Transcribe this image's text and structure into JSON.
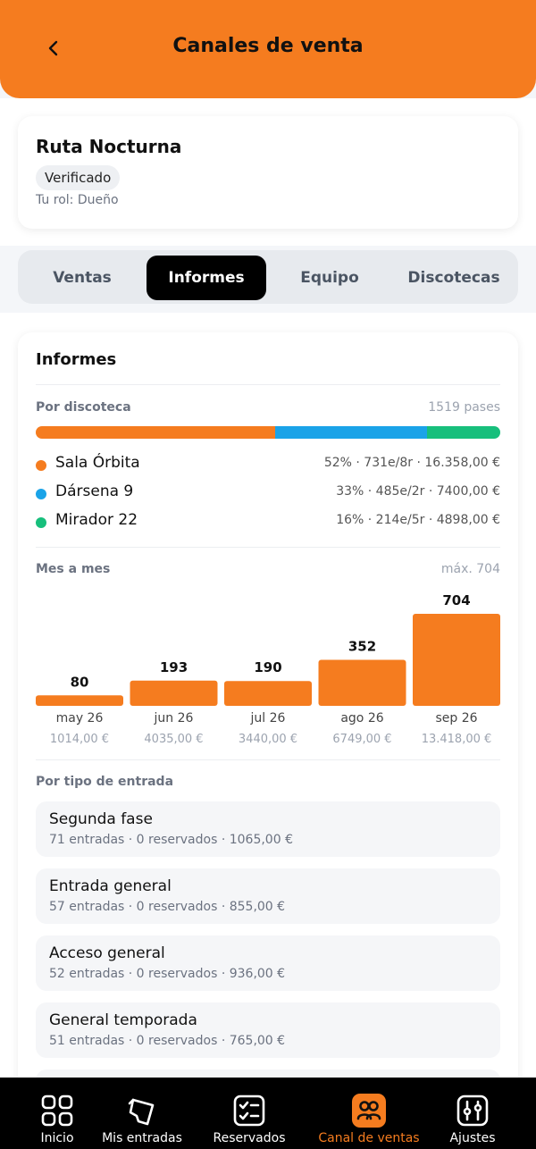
{
  "header": {
    "title": "Canales de venta",
    "back_icon": "chevron-left-icon"
  },
  "profile": {
    "name": "Ruta Nocturna",
    "badge": "Verificado",
    "role": "Tu rol: Dueño"
  },
  "tabs": [
    {
      "label": "Ventas",
      "active": false
    },
    {
      "label": "Informes",
      "active": true
    },
    {
      "label": "Equipo",
      "active": false
    },
    {
      "label": "Discotecas",
      "active": false
    }
  ],
  "report": {
    "title": "Informes",
    "by_club": {
      "title": "Por discoteca",
      "total": "1519 pases",
      "items": [
        {
          "name": "Sala Órbita",
          "stats": "52% · 731e/8r · 16.358,00 €",
          "share": 52,
          "color": "#f57c1f"
        },
        {
          "name": "Dársena 9",
          "stats": "33% · 485e/2r · 7400,00 €",
          "share": 33,
          "color": "#1aa3e8"
        },
        {
          "name": "Mirador 22",
          "stats": "16% · 214e/5r · 4898,00 €",
          "share": 16,
          "color": "#17bf7c"
        }
      ]
    },
    "monthly": {
      "title": "Mes a mes",
      "max_label": "máx. 704"
    },
    "by_ticket": {
      "title": "Por tipo de entrada",
      "items": [
        {
          "name": "Segunda fase",
          "meta": "71 entradas · 0 reservados · 1065,00 €"
        },
        {
          "name": "Entrada general",
          "meta": "57 entradas · 0 reservados · 855,00 €"
        },
        {
          "name": "Acceso general",
          "meta": "52 entradas · 0 reservados · 936,00 €"
        },
        {
          "name": "General temporada",
          "meta": "51 entradas · 0 reservados · 765,00 €"
        }
      ]
    }
  },
  "chart_data": {
    "type": "bar",
    "categories": [
      "may 26",
      "jun 26",
      "jul 26",
      "ago 26",
      "sep 26"
    ],
    "values": [
      80,
      193,
      190,
      352,
      704
    ],
    "amounts": [
      "1014,00 €",
      "4035,00 €",
      "3440,00 €",
      "6749,00 €",
      "13.418,00 €"
    ],
    "ylim": [
      0,
      704
    ],
    "color": "#f57c1f"
  },
  "nav": [
    {
      "label": "Inicio",
      "icon": "grid-icon",
      "active": false
    },
    {
      "label": "Mis entradas",
      "icon": "ticket-icon",
      "active": false
    },
    {
      "label": "Reservados",
      "icon": "checklist-icon",
      "active": false
    },
    {
      "label": "Canal de ventas",
      "icon": "group-icon",
      "active": true
    },
    {
      "label": "Ajustes",
      "icon": "sliders-icon",
      "active": false
    }
  ]
}
